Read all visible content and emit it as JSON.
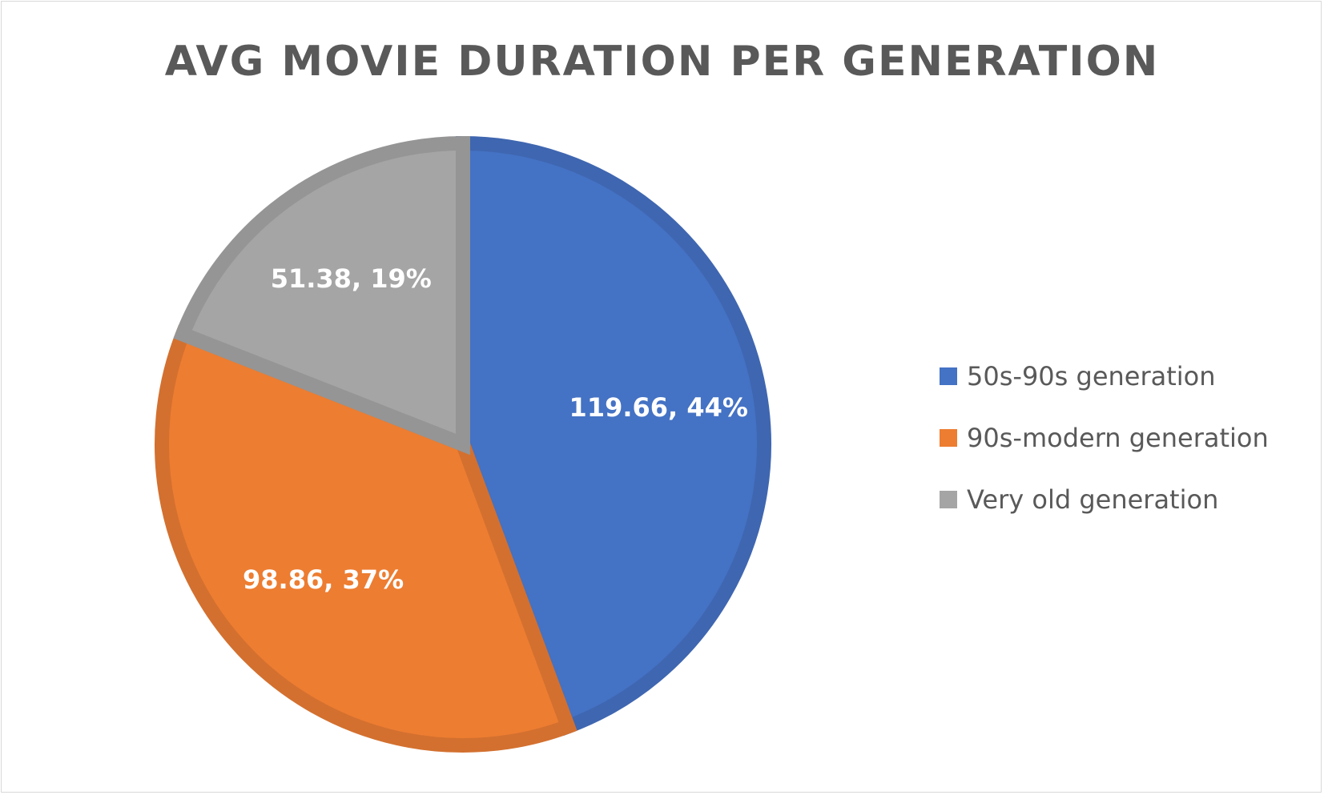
{
  "chart_data": {
    "type": "pie",
    "title": "AVG MOVIE DURATION PER GENERATION",
    "slices": [
      {
        "name": "50s-90s generation",
        "value": 119.66,
        "percent": 44,
        "label": "119.66, 44%",
        "color": "#4472c4",
        "border": "#3f66b0"
      },
      {
        "name": "90s-modern generation",
        "value": 98.86,
        "percent": 37,
        "label": "98.86, 37%",
        "color": "#ed7d31",
        "border": "#d3702f"
      },
      {
        "name": "Very old generation",
        "value": 51.38,
        "percent": 19,
        "label": "51.38, 19%",
        "color": "#a5a5a5",
        "border": "#959595"
      }
    ],
    "start_angle": "12 o'clock",
    "direction": "clockwise",
    "legend_position": "right",
    "data_label_color": "#ffffff"
  }
}
